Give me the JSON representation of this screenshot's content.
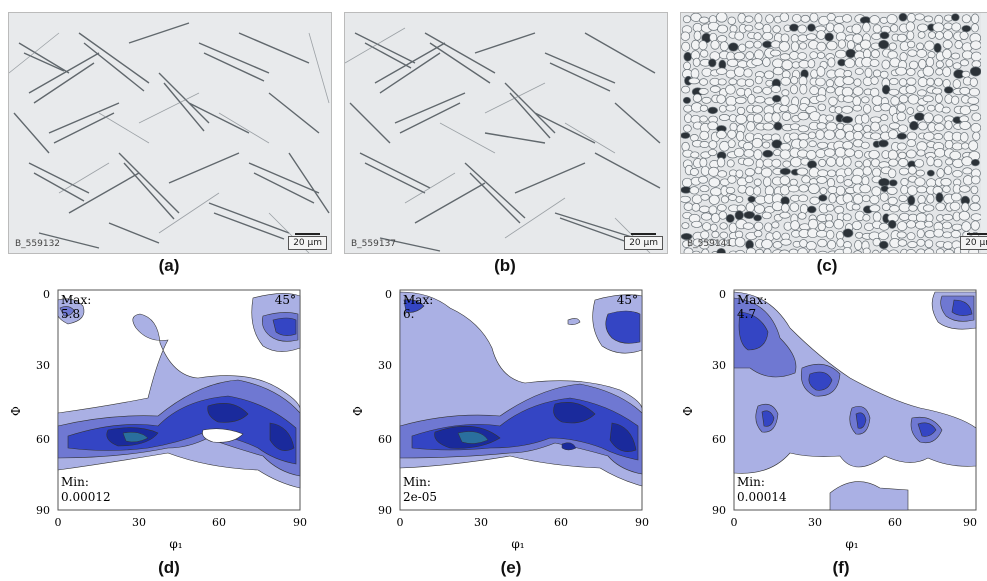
{
  "micrographs": [
    {
      "id": "B_559132",
      "scale_bar": "20 µm",
      "caption": "(a)"
    },
    {
      "id": "B_559137",
      "scale_bar": "20 µm",
      "caption": "(b)"
    },
    {
      "id": "B_559141",
      "scale_bar": "20 µm",
      "caption": "(c)"
    }
  ],
  "odf_plots": [
    {
      "max_label": "Max:",
      "max_value": "5.8",
      "min_label": "Min:",
      "min_value": "0.00012",
      "angle_label": "45°",
      "caption": "(d)"
    },
    {
      "max_label": "Max:",
      "max_value": "6.",
      "min_label": "Min:",
      "min_value": "2e-05",
      "angle_label": "45°",
      "caption": "(e)"
    },
    {
      "max_label": "Max:",
      "max_value": "4.7",
      "min_label": "Min:",
      "min_value": "0.00014",
      "angle_label": "",
      "caption": "(f)"
    }
  ],
  "axes": {
    "y_label": "Φ",
    "x_label": "φ₁",
    "y_ticks": [
      "0",
      "30",
      "60",
      "90"
    ],
    "x_ticks": [
      "0",
      "30",
      "60",
      "90"
    ]
  },
  "colors": {
    "level1": "#aab0e4",
    "level2": "#6f78d2",
    "level3": "#3445c4",
    "level4": "#1a2a9c",
    "level5": "#2a6f9e"
  }
}
